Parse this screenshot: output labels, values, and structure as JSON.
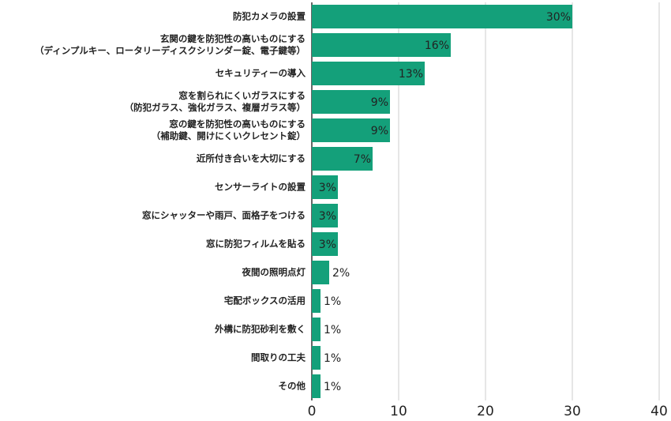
{
  "chart_data": {
    "type": "bar",
    "orientation": "horizontal",
    "categories": [
      "防犯カメラの設置",
      "玄関の鍵を防犯性の高いものにする\n（ディンプルキー、ロータリーディスクシリンダー錠、電子鍵等）",
      "セキュリティーの導入",
      "窓を割られにくいガラスにする\n（防犯ガラス、強化ガラス、複層ガラス等）",
      "窓の鍵を防犯性の高いものにする\n（補助鍵、開けにくいクレセント錠）",
      "近所付き合いを大切にする",
      "センサーライトの設置",
      "窓にシャッターや雨戸、面格子をつける",
      "窓に防犯フィルムを貼る",
      "夜間の照明点灯",
      "宅配ボックスの活用",
      "外構に防犯砂利を敷く",
      "間取りの工夫",
      "その他"
    ],
    "values": [
      30,
      16,
      13,
      9,
      9,
      7,
      3,
      3,
      3,
      2,
      1,
      1,
      1,
      1
    ],
    "value_labels": [
      "30%",
      "16%",
      "13%",
      "9%",
      "9%",
      "7%",
      "3%",
      "3%",
      "3%",
      "2%",
      "1%",
      "1%",
      "1%",
      "1%"
    ],
    "color": "#14a07a",
    "xlim": [
      0,
      40
    ],
    "xticks": [
      0,
      10,
      20,
      30,
      40
    ],
    "grid": true
  }
}
